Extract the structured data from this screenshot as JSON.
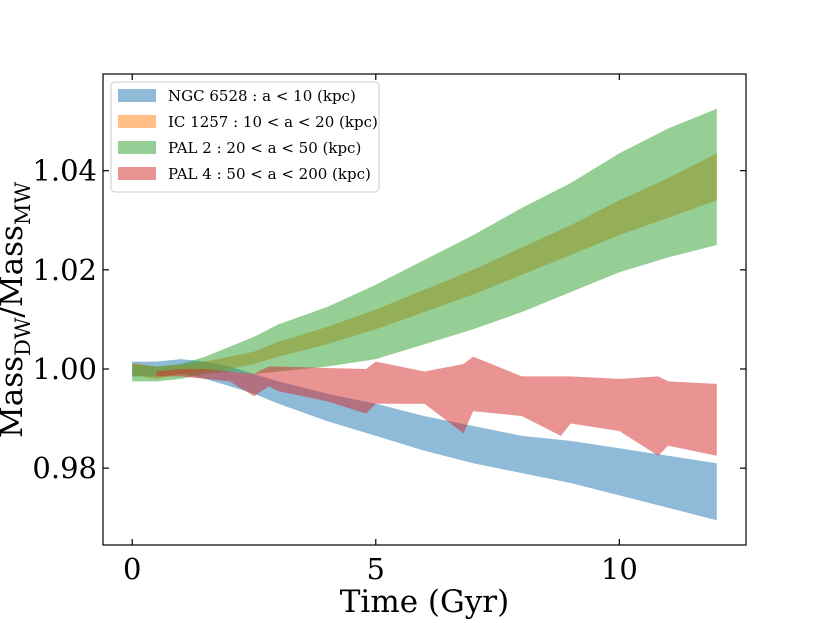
{
  "chart_data": {
    "type": "area",
    "title": "",
    "xlabel": "Time (Gyr)",
    "ylabel": {
      "main": "Mass",
      "sub_dw": "DW",
      "slash": "/",
      "main2": "Mass",
      "sub_mw": "MW"
    },
    "xlim": [
      -0.6,
      12.6
    ],
    "ylim": [
      0.9645,
      1.0595
    ],
    "xticks": [
      {
        "v": 0,
        "label": "0"
      },
      {
        "v": 5,
        "label": "5"
      },
      {
        "v": 10,
        "label": "10"
      }
    ],
    "yticks": [
      {
        "v": 0.98,
        "label": "0.98"
      },
      {
        "v": 1.0,
        "label": "1.00"
      },
      {
        "v": 1.02,
        "label": "1.02"
      },
      {
        "v": 1.04,
        "label": "1.04"
      }
    ],
    "grid": false,
    "legend_position": "upper-left",
    "series": [
      {
        "name": "NGC 6528 : a < 10 (kpc)",
        "color": "#1f77b4",
        "x": [
          0.0,
          0.5,
          1.0,
          1.5,
          2.0,
          2.5,
          3.0,
          4.0,
          5.0,
          6.0,
          7.0,
          8.0,
          9.0,
          10.0,
          11.0,
          12.0
        ],
        "upper": [
          1.0015,
          1.0015,
          1.002,
          1.0015,
          1.0005,
          0.999,
          0.9975,
          0.995,
          0.993,
          0.9905,
          0.9885,
          0.9865,
          0.9855,
          0.984,
          0.9825,
          0.981
        ],
        "lower": [
          0.9985,
          0.9985,
          0.999,
          0.998,
          0.9965,
          0.995,
          0.993,
          0.9895,
          0.9865,
          0.9835,
          0.981,
          0.979,
          0.977,
          0.9745,
          0.972,
          0.9695
        ]
      },
      {
        "name": "IC 1257 : 10 < a < 20 (kpc)",
        "color": "#ff7f0e",
        "x": [
          0.0,
          0.5,
          1.0,
          1.5,
          2.0,
          2.5,
          3.0,
          4.0,
          5.0,
          6.0,
          7.0,
          8.0,
          9.0,
          10.0,
          11.0,
          12.0
        ],
        "upper": [
          1.0012,
          1.0005,
          1.0008,
          1.0015,
          1.0025,
          1.0035,
          1.0055,
          1.0085,
          1.012,
          1.016,
          1.02,
          1.0245,
          1.029,
          1.034,
          1.0385,
          1.0435
        ],
        "lower": [
          0.9988,
          0.998,
          0.999,
          0.9995,
          1.0,
          1.001,
          1.0025,
          1.005,
          1.008,
          1.0115,
          1.015,
          1.019,
          1.023,
          1.027,
          1.0305,
          1.034
        ]
      },
      {
        "name": "PAL 2 : 20 < a < 50 (kpc)",
        "color": "#2ca02c",
        "x": [
          0.0,
          0.5,
          1.0,
          1.5,
          2.0,
          2.5,
          3.0,
          4.0,
          5.0,
          6.0,
          7.0,
          8.0,
          9.0,
          10.0,
          11.0,
          12.0
        ],
        "upper": [
          1.001,
          1.0005,
          1.001,
          1.0025,
          1.0045,
          1.0065,
          1.009,
          1.0125,
          1.017,
          1.022,
          1.027,
          1.0325,
          1.0375,
          1.0435,
          1.0485,
          1.0525
        ],
        "lower": [
          0.9975,
          0.9975,
          0.998,
          0.999,
          0.9995,
          0.999,
          0.9995,
          1.0005,
          1.002,
          1.005,
          1.008,
          1.0115,
          1.0155,
          1.0195,
          1.0225,
          1.025
        ]
      },
      {
        "name": "PAL 4 : 50 < a < 200 (kpc)",
        "color": "#d62728",
        "x": [
          0.5,
          1.0,
          1.5,
          2.0,
          2.5,
          2.8,
          3.0,
          4.0,
          4.8,
          5.0,
          6.0,
          6.8,
          7.0,
          8.0,
          8.8,
          9.0,
          10.0,
          10.8,
          11.0,
          12.0
        ],
        "upper": [
          0.9995,
          1.0,
          1.0,
          0.9995,
          0.999,
          1.0005,
          1.0005,
          1.0002,
          1.0,
          1.0015,
          0.9995,
          1.001,
          1.0025,
          0.9985,
          0.9985,
          0.9985,
          0.998,
          0.9985,
          0.9975,
          0.997
        ],
        "lower": [
          0.9985,
          0.9985,
          0.998,
          0.9975,
          0.9945,
          0.9965,
          0.9955,
          0.9935,
          0.991,
          0.993,
          0.993,
          0.987,
          0.9915,
          0.9905,
          0.9865,
          0.989,
          0.9875,
          0.9825,
          0.9845,
          0.9825
        ]
      }
    ]
  }
}
